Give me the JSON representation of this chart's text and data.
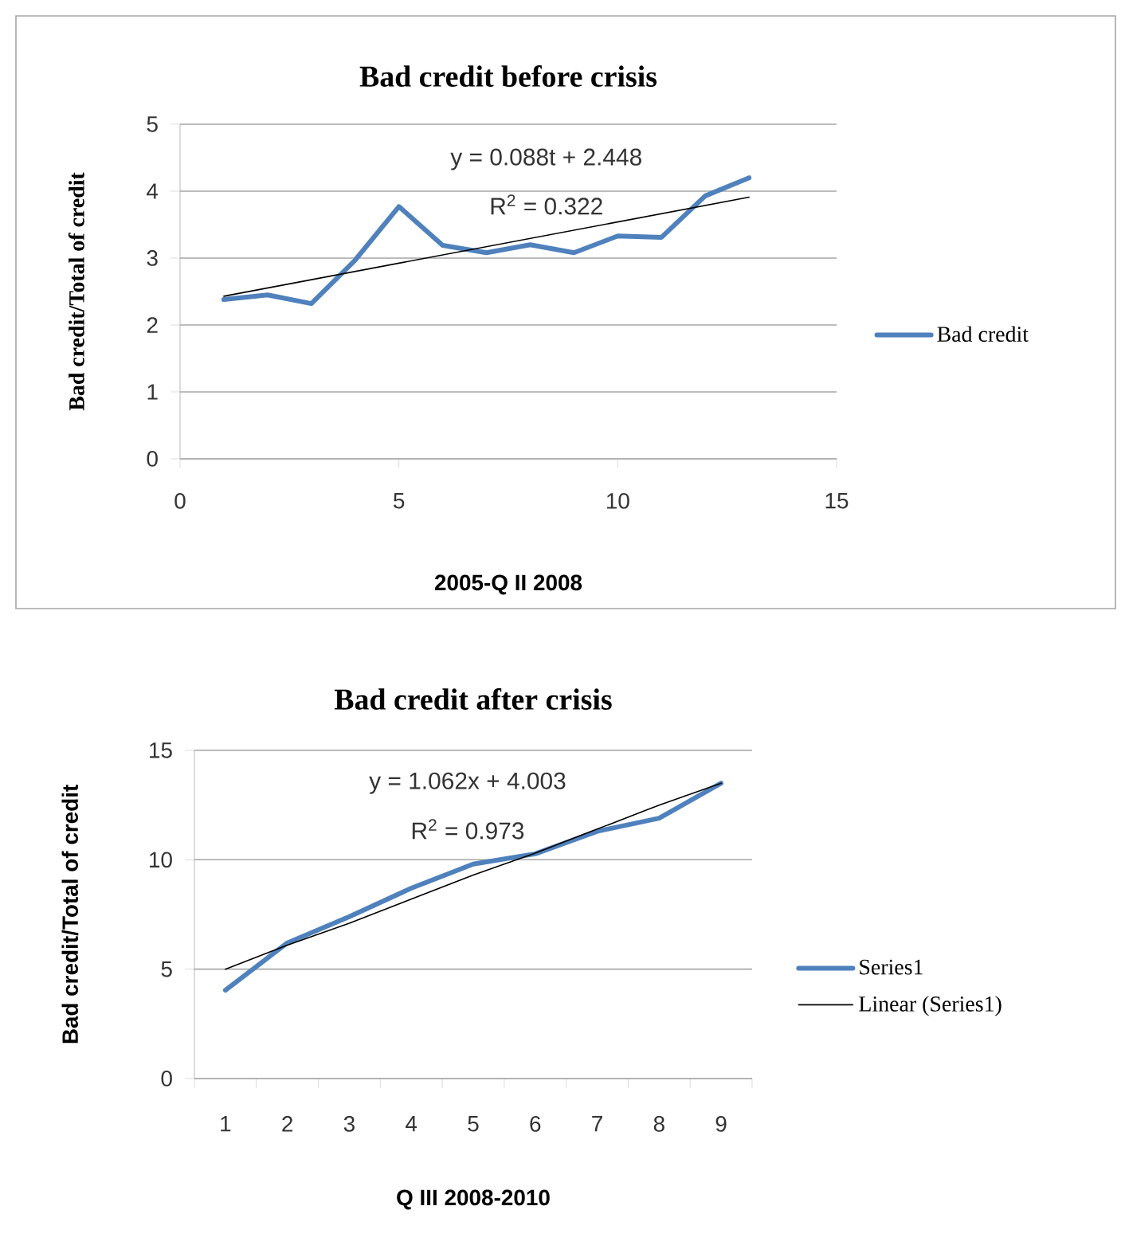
{
  "chart_data": [
    {
      "type": "line",
      "title": "Bad credit before crisis",
      "xlabel": "2005-Q II 2008",
      "ylabel": "Bad credit/Total of credit",
      "x": [
        1,
        2,
        3,
        4,
        5,
        6,
        7,
        8,
        9,
        10,
        11,
        12,
        13
      ],
      "series": [
        {
          "name": "Bad credit",
          "color": "#4f81bd",
          "values": [
            2.38,
            2.45,
            2.32,
            2.97,
            3.77,
            3.19,
            3.08,
            3.2,
            3.08,
            3.33,
            3.31,
            3.93,
            4.2
          ]
        },
        {
          "type": "line",
          "color": "#000000",
          "x": [
            1,
            13
          ],
          "values": [
            2.43,
            3.91
          ]
        }
      ],
      "xlim": [
        0,
        15
      ],
      "xticks": [
        0,
        5,
        10,
        15
      ],
      "ylim": [
        0,
        5
      ],
      "yticks": [
        0,
        1,
        2,
        3,
        4,
        5
      ],
      "grid": "y",
      "legend": "right",
      "annotations": [
        "y = 0.088t + 2.448",
        "R$^{2}$ = 0.322"
      ]
    },
    {
      "type": "line",
      "title": "Bad credit after crisis",
      "xlabel": "Q III 2008-2010",
      "ylabel": "Bad credit/Total of credit",
      "categories": [
        "1",
        "2",
        "3",
        "4",
        "5",
        "6",
        "7",
        "8",
        "9"
      ],
      "series": [
        {
          "name": "Series1",
          "color": "#4f81bd",
          "values": [
            4.04,
            6.2,
            7.4,
            8.7,
            9.8,
            10.27,
            11.3,
            11.9,
            13.5
          ]
        },
        {
          "name": "Linear (Series1)",
          "type": "line",
          "color": "#000000",
          "values": [
            5.0,
            6.1,
            7.1,
            8.2,
            9.3,
            10.3,
            11.4,
            12.5,
            13.5
          ]
        }
      ],
      "ylim": [
        0,
        15
      ],
      "yticks": [
        0,
        5,
        10,
        15
      ],
      "grid": "y",
      "legend": "right",
      "annotations": [
        "y = 1.062x + 4.003",
        "R$^{2}$ = 0.973"
      ]
    }
  ]
}
